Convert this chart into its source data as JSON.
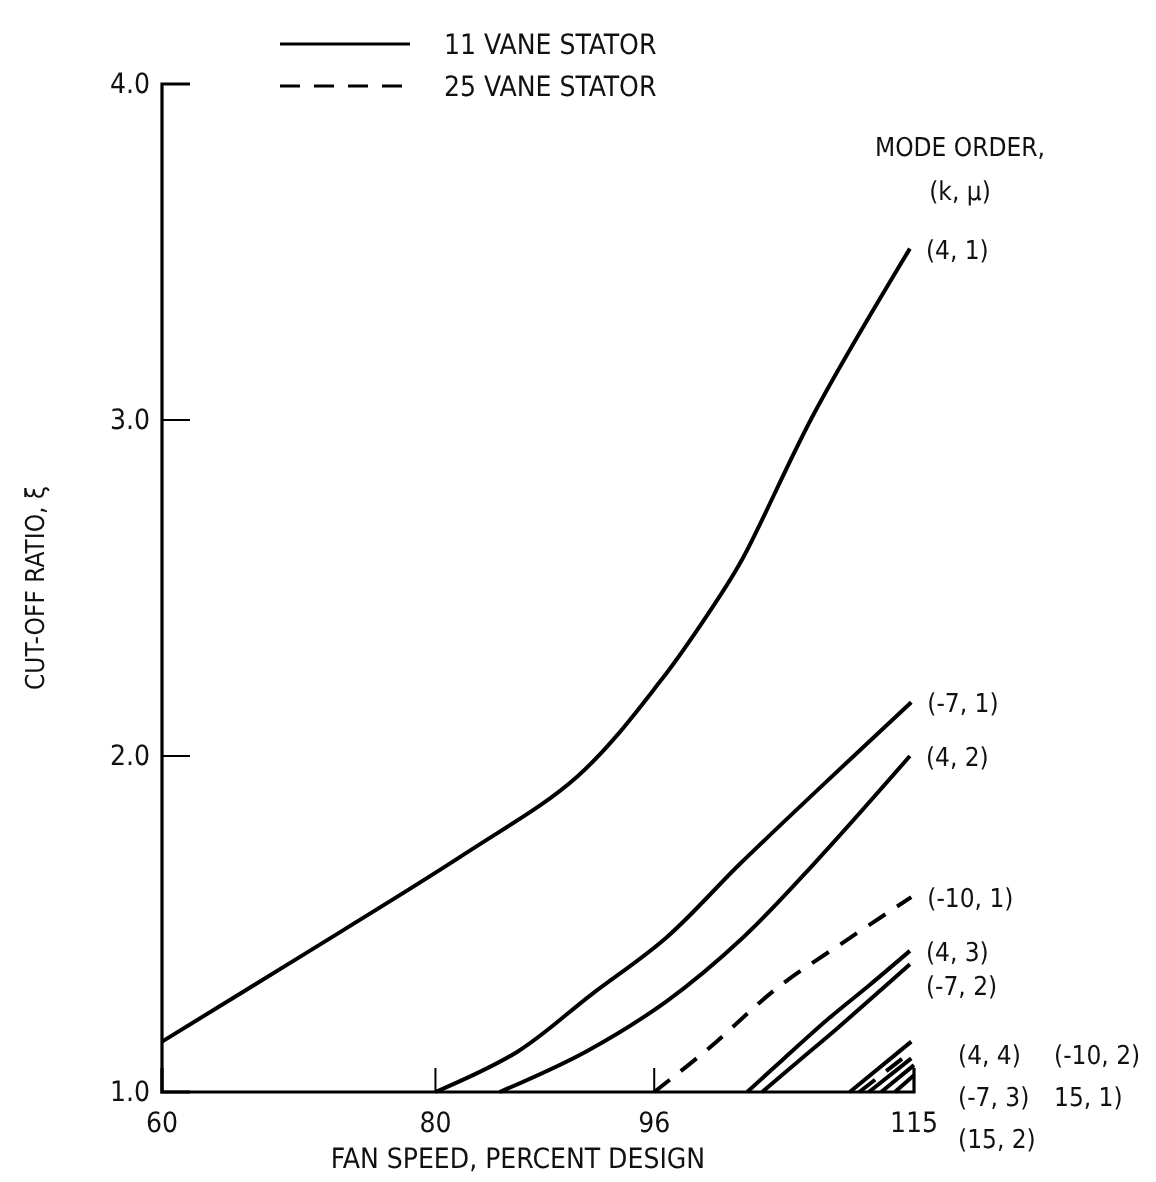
{
  "chart_data": {
    "type": "line",
    "xlabel": "FAN SPEED, PERCENT DESIGN",
    "ylabel": "CUT-OFF RATIO, ξ",
    "xlim": [
      60,
      115
    ],
    "xticks": [
      60,
      80,
      96,
      115
    ],
    "ylim": [
      1,
      4
    ],
    "yticks": [
      {
        "value": 1,
        "label": "1.0"
      },
      {
        "value": 2,
        "label": "2.0"
      },
      {
        "value": 3,
        "label": "3.0"
      },
      {
        "value": 4,
        "label": "4.0"
      }
    ],
    "grid": false,
    "marker": "none",
    "line_style": "solid",
    "annotations": [
      "11 VANE STATOR",
      "25 VANE STATOR",
      "MODE ORDER,",
      "(k, μ)"
    ],
    "series": [
      {
        "name": "(4, 1)",
        "color": "#000000",
        "x": [
          60,
          70,
          82.2,
          90.4,
          96.4,
          100.7,
          102.5,
          107.7,
          114.7
        ],
        "values": [
          1.15,
          1.4,
          1.71,
          1.94,
          2.22,
          2.47,
          2.59,
          3.02,
          3.51
        ]
      },
      {
        "name": "(-7, 1)",
        "color": "#000000",
        "x": [
          80,
          86,
          91.4,
          96.9,
          102.3,
          108.5,
          114.8
        ],
        "values": [
          1.0,
          1.12,
          1.29,
          1.46,
          1.68,
          1.92,
          2.16
        ]
      },
      {
        "name": "(4, 2)",
        "color": "#000000",
        "x": [
          84.7,
          91,
          96.9,
          102.5,
          107.7,
          114.7
        ],
        "values": [
          1.0,
          1.12,
          1.27,
          1.46,
          1.68,
          2.0
        ]
      },
      {
        "name": "(-10, 1)",
        "color": "#000000",
        "line_style": "dashed",
        "x": [
          96,
          100,
          105,
          110,
          114.8
        ],
        "values": [
          1.0,
          1.13,
          1.31,
          1.45,
          1.58
        ]
      },
      {
        "name": "(4, 3)",
        "color": "#000000",
        "x": [
          102.8,
          105.5,
          108.8,
          111.8,
          114.7
        ],
        "values": [
          1.0,
          1.1,
          1.22,
          1.32,
          1.42
        ]
      },
      {
        "name": "(-7, 2)",
        "color": "#000000",
        "x": [
          103.9,
          106.5,
          109.4,
          112.2,
          114.7
        ],
        "values": [
          1.0,
          1.09,
          1.19,
          1.29,
          1.38
        ]
      },
      {
        "name": "(4, 4)",
        "color": "#000000",
        "x": [
          110.3,
          114.8
        ],
        "values": [
          1.0,
          1.15
        ]
      },
      {
        "name": "(-10, 2)",
        "color": "#000000",
        "line_style": "dashed",
        "x": [
          111,
          114.8
        ],
        "values": [
          1.0,
          1.12
        ]
      },
      {
        "name": "(-7, 3)",
        "color": "#000000",
        "x": [
          111.7,
          114.8
        ],
        "values": [
          1.0,
          1.1
        ]
      },
      {
        "name": "15, 1)",
        "color": "#000000",
        "x": [
          112.6,
          115
        ],
        "values": [
          1.0,
          1.08
        ]
      },
      {
        "name": "(15, 2)",
        "color": "#000000",
        "x": [
          113.6,
          115
        ],
        "values": [
          1.0,
          1.05
        ]
      }
    ]
  }
}
